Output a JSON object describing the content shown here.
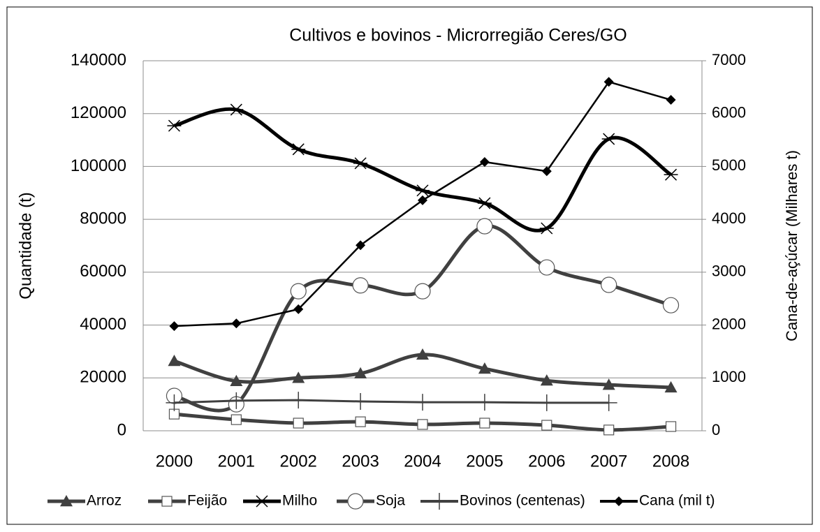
{
  "chart_data": {
    "type": "line",
    "title": "Cultivos e bovinos - Microrregião Ceres/GO",
    "y_label": "Quantidade (t)",
    "y2_label": "Cana-de-açúcar (Milhares t)",
    "categories": [
      "2000",
      "2001",
      "2002",
      "2003",
      "2004",
      "2005",
      "2006",
      "2007",
      "2008"
    ],
    "ylim": [
      0,
      140000
    ],
    "yticks": [
      0,
      20000,
      40000,
      60000,
      80000,
      100000,
      120000,
      140000
    ],
    "y2lim": [
      0,
      7000
    ],
    "y2ticks": [
      0,
      1000,
      2000,
      3000,
      4000,
      5000,
      6000,
      7000
    ],
    "grid": true,
    "legend": "bottom",
    "series": [
      {
        "name": "Arroz",
        "color": "#404040",
        "marker": "triangle",
        "smooth": true,
        "width": 5,
        "values": [
          26400,
          18800,
          20000,
          21700,
          28800,
          23500,
          19000,
          17400,
          16400
        ]
      },
      {
        "name": "Feijão",
        "color": "#404040",
        "marker": "square",
        "smooth": true,
        "width": 5,
        "values": [
          6300,
          4200,
          2900,
          3400,
          2400,
          2900,
          2100,
          300,
          1600
        ]
      },
      {
        "name": "Milho",
        "color": "#000000",
        "marker": "star",
        "smooth": true,
        "width": 5,
        "values": [
          115400,
          121500,
          106500,
          101200,
          90900,
          86100,
          76600,
          110400,
          96900
        ]
      },
      {
        "name": "Soja",
        "color": "#404040",
        "marker": "circle",
        "smooth": true,
        "width": 5,
        "values": [
          13200,
          10000,
          52800,
          55000,
          52800,
          77400,
          61800,
          55200,
          47500
        ]
      },
      {
        "name": "Bovinos (centenas)",
        "color": "#404040",
        "marker": "plus",
        "smooth": false,
        "width": 3,
        "values": [
          10600,
          11400,
          11600,
          11100,
          10800,
          10800,
          10600,
          10600,
          null
        ]
      },
      {
        "name": "Cana (mil t)",
        "color": "#000000",
        "marker": "diamond",
        "smooth": false,
        "width": 2.5,
        "axis": "y2",
        "values": [
          1980,
          2030,
          2300,
          3510,
          4360,
          5085,
          4910,
          6600,
          6260
        ]
      }
    ]
  }
}
